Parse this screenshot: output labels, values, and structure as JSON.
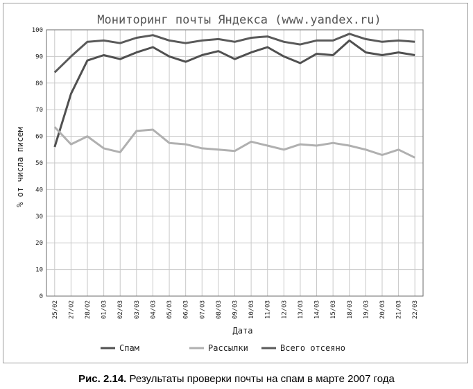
{
  "chart_data": {
    "type": "line",
    "title": "Мониторинг почты Яндекса (www.yandex.ru)",
    "xlabel": "Дата",
    "ylabel": "% от числа писем",
    "ylim": [
      0,
      100
    ],
    "yticks": [
      0,
      10,
      20,
      30,
      40,
      50,
      60,
      70,
      80,
      90,
      100
    ],
    "grid": true,
    "legend_position": "bottom",
    "categories": [
      "25/02",
      "27/02",
      "28/02",
      "01/03",
      "02/03",
      "03/03",
      "04/03",
      "05/03",
      "06/03",
      "07/03",
      "08/03",
      "09/03",
      "10/03",
      "11/03",
      "12/03",
      "13/03",
      "14/03",
      "15/03",
      "18/03",
      "19/03",
      "20/03",
      "21/03",
      "22/03"
    ],
    "series": [
      {
        "name": "Спам",
        "color": "#505050",
        "values": [
          56,
          76,
          88.5,
          90.5,
          89,
          91.5,
          93.5,
          90,
          88,
          90.5,
          92,
          89,
          91.5,
          93.5,
          90,
          87.5,
          91,
          90.5,
          96,
          91.5,
          90.5,
          91.5,
          90.5
        ]
      },
      {
        "name": "Рассылки",
        "color": "#b0b0b0",
        "values": [
          63.5,
          57,
          60,
          55.5,
          54,
          62,
          62.5,
          57.5,
          57,
          55.5,
          55,
          54.5,
          58,
          56.5,
          55,
          57,
          56.5,
          57.5,
          56.5,
          55,
          53,
          55,
          52
        ]
      },
      {
        "name": "Всего отсеяно",
        "color": "#5a5a5a",
        "values": [
          84,
          90,
          95.5,
          96,
          95,
          97,
          98,
          96,
          95,
          96,
          96.5,
          95.5,
          97,
          97.5,
          95.5,
          94.5,
          96,
          96,
          98.5,
          96.5,
          95.5,
          96,
          95.5
        ]
      }
    ]
  },
  "caption": {
    "label": "Рис. 2.14.",
    "text": "Результаты проверки почты на спам в марте 2007 года"
  }
}
